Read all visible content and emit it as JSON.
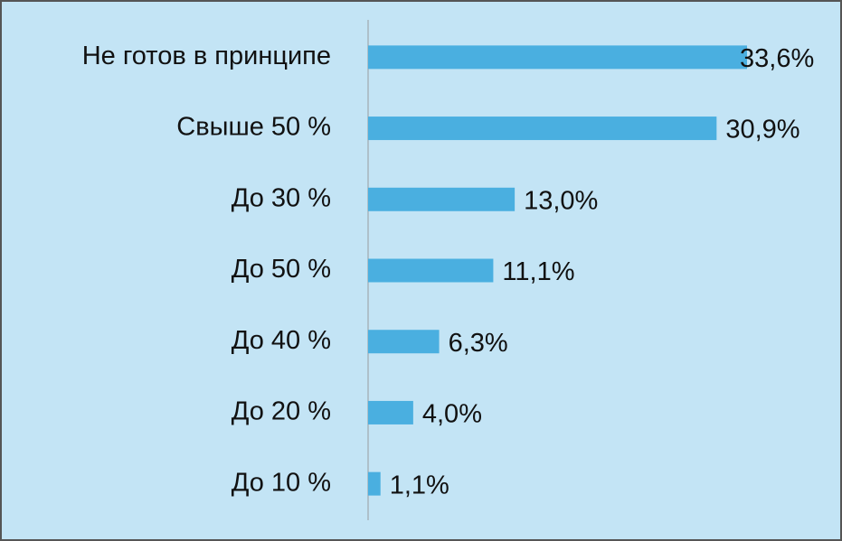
{
  "chart_data": {
    "type": "bar",
    "orientation": "horizontal",
    "categories": [
      "Не готов в принципе",
      "Свыше 50 %",
      "До 30 %",
      "До 50 %",
      "До 40 %",
      "До 20 %",
      "До 10 %"
    ],
    "values": [
      33.6,
      30.9,
      13.0,
      11.1,
      6.3,
      4.0,
      1.1
    ],
    "value_labels": [
      "33,6%",
      "30,9%",
      "13,0%",
      "11,1%",
      "6,3%",
      "4,0%",
      "1,1%"
    ],
    "color": "#4aafe0"
  }
}
